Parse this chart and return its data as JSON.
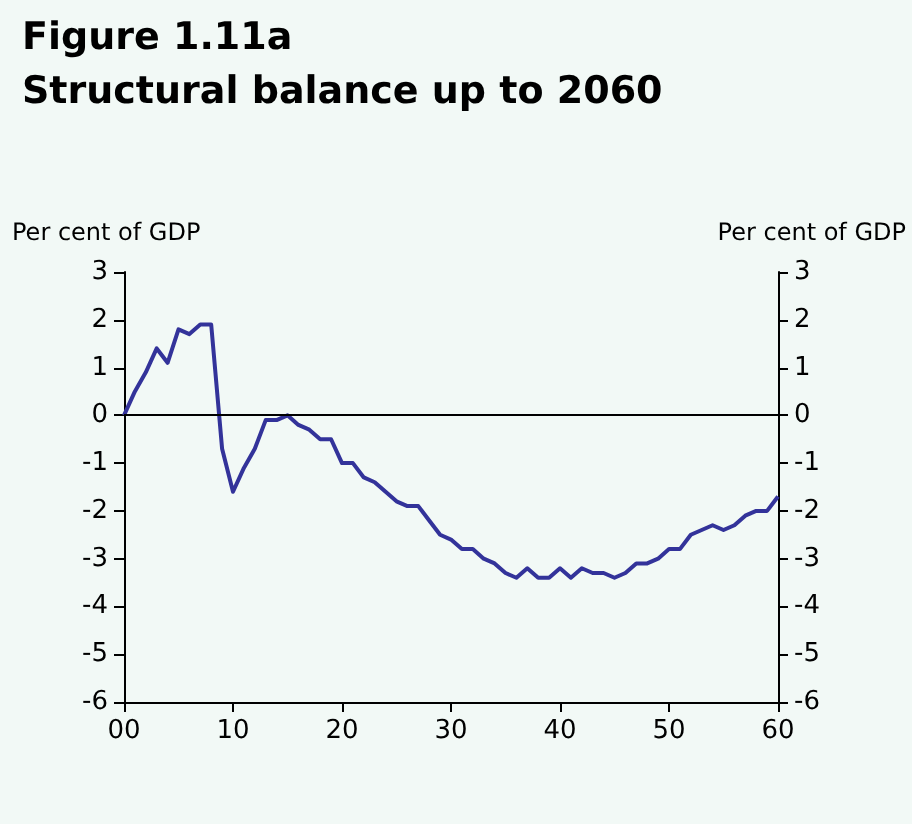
{
  "chart_data": {
    "type": "line",
    "title": "Figure 1.11a",
    "subtitle": "Structural balance up to 2060",
    "ylabel": "Per cent of GDP",
    "y2label": "Per cent of GDP",
    "x": [
      2000,
      2001,
      2002,
      2003,
      2004,
      2005,
      2006,
      2007,
      2008,
      2009,
      2010,
      2011,
      2012,
      2013,
      2014,
      2015,
      2016,
      2017,
      2018,
      2019,
      2020,
      2021,
      2022,
      2023,
      2024,
      2025,
      2026,
      2027,
      2028,
      2029,
      2030,
      2031,
      2032,
      2033,
      2034,
      2035,
      2036,
      2037,
      2038,
      2039,
      2040,
      2041,
      2042,
      2043,
      2044,
      2045,
      2046,
      2047,
      2048,
      2049,
      2050,
      2051,
      2052,
      2053,
      2054,
      2055,
      2056,
      2057,
      2058,
      2059,
      2060
    ],
    "series": [
      {
        "color": "#33339a",
        "values": [
          0,
          0.5,
          0.9,
          1.4,
          1.1,
          1.8,
          1.7,
          1.9,
          1.9,
          -0.7,
          -1.6,
          -1.1,
          -0.7,
          -0.1,
          -0.1,
          0,
          -0.2,
          -0.3,
          -0.5,
          -0.5,
          -1,
          -1,
          -1.3,
          -1.4,
          -1.6,
          -1.8,
          -1.9,
          -1.9,
          -2.2,
          -2.5,
          -2.6,
          -2.8,
          -2.8,
          -3,
          -3.1,
          -3.3,
          -3.4,
          -3.2,
          -3.4,
          -3.4,
          -3.2,
          -3.4,
          -3.2,
          -3.3,
          -3.3,
          -3.4,
          -3.3,
          -3.1,
          -3.1,
          -3,
          -2.8,
          -2.8,
          -2.5,
          -2.4,
          -2.3,
          -2.4,
          -2.3,
          -2.1,
          -2,
          -2,
          -1.7
        ]
      }
    ],
    "xlim": [
      2000,
      2060
    ],
    "xticks": [
      {
        "value": 2000,
        "label": "00"
      },
      {
        "value": 2010,
        "label": "10"
      },
      {
        "value": 2020,
        "label": "20"
      },
      {
        "value": 2030,
        "label": "30"
      },
      {
        "value": 2040,
        "label": "40"
      },
      {
        "value": 2050,
        "label": "50"
      },
      {
        "value": 2060,
        "label": "60"
      }
    ],
    "ylim": [
      -6,
      3
    ],
    "yticks": [
      -6,
      -5,
      -4,
      -3,
      -2,
      -1,
      0,
      1,
      2,
      3
    ],
    "y2lim": [
      -6,
      3
    ],
    "y2ticks": [
      -6,
      -5,
      -4,
      -3,
      -2,
      -1,
      0,
      1,
      2,
      3
    ],
    "ref_lines": [
      {
        "axis": "y",
        "value": 0,
        "color": "#000000"
      }
    ],
    "grid": false,
    "marker": "none",
    "line_style": "solid"
  }
}
